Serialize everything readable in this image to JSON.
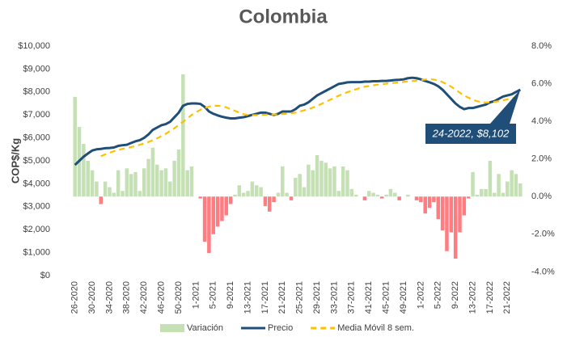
{
  "chart_data": {
    "type": "combo",
    "title": "Colombia",
    "y_label": "COP$/Kg",
    "categories": [
      "26-2020",
      null,
      null,
      null,
      "30-2020",
      null,
      null,
      null,
      "34-2020",
      null,
      null,
      null,
      "38-2020",
      null,
      null,
      null,
      "42-2020",
      null,
      null,
      null,
      "46-2020",
      null,
      null,
      null,
      "50-2020",
      null,
      null,
      null,
      "1-2021",
      null,
      null,
      null,
      "5-2021",
      null,
      null,
      null,
      "9-2021",
      null,
      null,
      null,
      "13-2021",
      null,
      null,
      null,
      "17-2021",
      null,
      null,
      null,
      "21-2021",
      null,
      null,
      null,
      "25-2021",
      null,
      null,
      null,
      "29-2021",
      null,
      null,
      null,
      "33-2021",
      null,
      null,
      null,
      "37-2021",
      null,
      null,
      null,
      "41-2021",
      null,
      null,
      null,
      "45-2021",
      null,
      null,
      null,
      "49-2021",
      null,
      null,
      null,
      "1-2022",
      null,
      null,
      null,
      "5-2022",
      null,
      null,
      null,
      "9-2022",
      null,
      null,
      null,
      "13-2022",
      null,
      null,
      null,
      "17-2022",
      null,
      null,
      null,
      "21-2022",
      null,
      null,
      null
    ],
    "series": [
      {
        "name": "Variación",
        "type": "bar",
        "axis": "y2",
        "color": "#c5e0b4",
        "negative_color": "#ff7c80",
        "values": [
          5.3,
          3.7,
          2.8,
          1.9,
          1.4,
          0.8,
          -0.4,
          0.8,
          0.5,
          0.2,
          1.4,
          0.3,
          1.5,
          1.2,
          1.3,
          0.3,
          1.5,
          2.0,
          2.6,
          1.7,
          1.4,
          1.5,
          0.8,
          1.9,
          2.5,
          6.5,
          1.4,
          1.6,
          0.0,
          -0.1,
          -2.4,
          -3.0,
          -2.0,
          -1.6,
          -1.3,
          -1.0,
          -0.4,
          0.1,
          0.6,
          0.2,
          0.3,
          0.8,
          0.6,
          0.5,
          -0.5,
          -0.8,
          -0.3,
          0.2,
          1.6,
          0.2,
          -0.2,
          1.0,
          1.2,
          0.5,
          1.7,
          1.4,
          2.2,
          1.9,
          1.8,
          1.5,
          1.6,
          0.3,
          1.6,
          1.4,
          0.4,
          0.1,
          0.0,
          -0.2,
          0.3,
          0.2,
          0.1,
          -0.1,
          0.1,
          0.4,
          0.2,
          -0.2,
          0.0,
          0.1,
          0.0,
          -0.2,
          -0.3,
          -0.9,
          -0.6,
          -0.3,
          -1.2,
          -1.8,
          -2.9,
          -1.9,
          -3.3,
          -1.9,
          -1.0,
          -0.1,
          1.3,
          0.1,
          0.4,
          0.4,
          1.9,
          0.2,
          1.2,
          0.2,
          0.8,
          1.4,
          1.2,
          0.7
        ]
      },
      {
        "name": "Precio",
        "type": "line",
        "color": "#1f4e79",
        "values": [
          4820,
          5000,
          5180,
          5320,
          5450,
          5500,
          5520,
          5550,
          5560,
          5580,
          5650,
          5680,
          5700,
          5780,
          5850,
          5900,
          6000,
          6150,
          6350,
          6450,
          6550,
          6600,
          6700,
          6900,
          7100,
          7400,
          7480,
          7500,
          7500,
          7480,
          7350,
          7150,
          7050,
          6980,
          6920,
          6880,
          6850,
          6850,
          6880,
          6900,
          6950,
          7000,
          7050,
          7100,
          7100,
          7050,
          7000,
          7050,
          7150,
          7150,
          7150,
          7250,
          7400,
          7450,
          7550,
          7700,
          7850,
          7950,
          8050,
          8150,
          8250,
          8350,
          8380,
          8420,
          8430,
          8430,
          8430,
          8450,
          8450,
          8470,
          8470,
          8480,
          8480,
          8500,
          8520,
          8530,
          8550,
          8600,
          8620,
          8600,
          8550,
          8480,
          8420,
          8350,
          8250,
          8100,
          7900,
          7700,
          7500,
          7350,
          7250,
          7300,
          7300,
          7350,
          7400,
          7450,
          7550,
          7600,
          7700,
          7800,
          7850,
          7900,
          8000,
          8102
        ]
      },
      {
        "name": "Media Móvil 8 sem.",
        "type": "dashed-line",
        "color": "#ffc000",
        "values": [
          null,
          null,
          null,
          null,
          null,
          null,
          5200,
          5280,
          5350,
          5420,
          5470,
          5520,
          5560,
          5600,
          5640,
          5700,
          5760,
          5820,
          5900,
          5980,
          6080,
          6180,
          6300,
          6420,
          6560,
          6700,
          6850,
          7000,
          7120,
          7220,
          7300,
          7360,
          7400,
          7400,
          7380,
          7330,
          7250,
          7180,
          7100,
          7030,
          7000,
          6990,
          6990,
          7000,
          7010,
          7020,
          7020,
          7030,
          7040,
          7050,
          7080,
          7100,
          7150,
          7200,
          7250,
          7320,
          7400,
          7480,
          7570,
          7660,
          7750,
          7840,
          7920,
          7990,
          8050,
          8120,
          8180,
          8230,
          8260,
          8290,
          8320,
          8340,
          8360,
          8380,
          8400,
          8420,
          8440,
          8460,
          8480,
          8500,
          8520,
          8540,
          8550,
          8540,
          8500,
          8430,
          8340,
          8230,
          8100,
          7970,
          7850,
          7750,
          7660,
          7600,
          7560,
          7540,
          7550,
          7570,
          7600,
          7640,
          7680,
          7720,
          7760,
          7800
        ]
      }
    ],
    "ylim": [
      0,
      10000
    ],
    "yticks": [
      {
        "value": 0,
        "label": "$0"
      },
      {
        "value": 1000,
        "label": "$1,000"
      },
      {
        "value": 2000,
        "label": "$2,000"
      },
      {
        "value": 3000,
        "label": "$3,000"
      },
      {
        "value": 4000,
        "label": "$4,000"
      },
      {
        "value": 5000,
        "label": "$5,000"
      },
      {
        "value": 6000,
        "label": "$6,000"
      },
      {
        "value": 7000,
        "label": "$7,000"
      },
      {
        "value": 8000,
        "label": "$8,000"
      },
      {
        "value": 9000,
        "label": "$9,000"
      },
      {
        "value": 10000,
        "label": "$10,000"
      }
    ],
    "y2lim": [
      -4.2,
      8
    ],
    "y2ticks": [
      {
        "value": -4,
        "label": "-4.0%"
      },
      {
        "value": -2,
        "label": "-2.0%"
      },
      {
        "value": 0,
        "label": "0.0%"
      },
      {
        "value": 2,
        "label": "2.0%"
      },
      {
        "value": 4,
        "label": "4.0%"
      },
      {
        "value": 6,
        "label": "6.0%"
      },
      {
        "value": 8,
        "label": "8.0%"
      }
    ],
    "grid": false,
    "legend": "bottom",
    "annotation": "24-2022, $8,102"
  }
}
